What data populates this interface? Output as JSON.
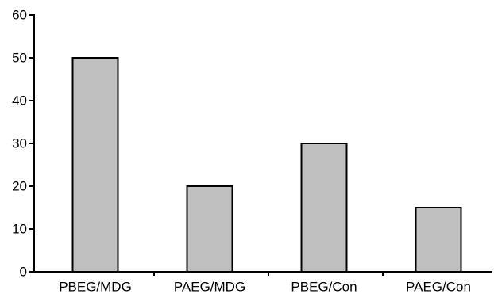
{
  "chart_data": {
    "type": "bar",
    "categories": [
      "PBEG/MDG",
      "PAEG/MDG",
      "PBEG/Con",
      "PAEG/Con"
    ],
    "values": [
      50,
      20,
      30,
      15
    ],
    "title": "",
    "xlabel": "",
    "ylabel": "",
    "ylim": [
      0,
      60
    ],
    "yticks": [
      "0",
      "10",
      "20",
      "30",
      "40",
      "50",
      "60"
    ],
    "grid": false,
    "legend": false,
    "bar_color": "#c0c0c0",
    "bar_edge_color": "#000000"
  }
}
